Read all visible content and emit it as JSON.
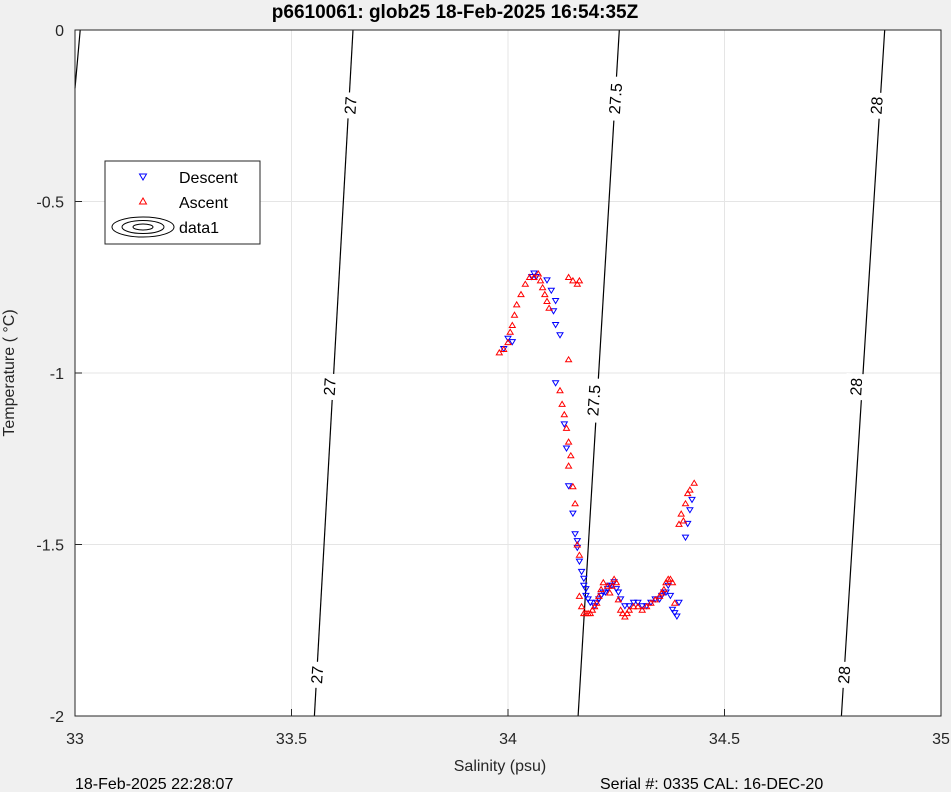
{
  "chart_data": {
    "type": "scatter",
    "title": "p6610061: glob25 18-Feb-2025 16:54:35Z",
    "xlabel": "Salinity (psu)",
    "ylabel": "Temperature (   °C)",
    "xlim": [
      33,
      35
    ],
    "ylim": [
      -2,
      0
    ],
    "xticks": [
      "33",
      "33.5",
      "34",
      "34.5",
      "35"
    ],
    "yticks": [
      "0",
      "-0.5",
      "-1",
      "-1.5",
      "-2"
    ],
    "grid": true,
    "legend_position": "upper-left",
    "legend": [
      "Descent",
      "Ascent",
      "data1"
    ],
    "footer_left": "18-Feb-2025 22:28:07",
    "footer_right": "Serial #: 0335  CAL: 16-DEC-20",
    "contours": [
      {
        "level": "27",
        "points": [
          [
            33.553,
            -2.0
          ],
          [
            33.642,
            0.0
          ]
        ]
      },
      {
        "level": "27.5",
        "points": [
          [
            34.162,
            -2.0
          ],
          [
            34.257,
            0.0
          ]
        ]
      },
      {
        "level": "28",
        "points": [
          [
            34.77,
            -2.0
          ],
          [
            34.87,
            0.0
          ]
        ]
      },
      {
        "level": "",
        "points": [
          [
            33.0,
            -0.17
          ],
          [
            33.012,
            0.0
          ]
        ]
      }
    ],
    "contour_labels": [
      {
        "text": "27",
        "s": 33.635,
        "t": -0.22
      },
      {
        "text": "27.5",
        "s": 34.247,
        "t": -0.2
      },
      {
        "text": "28",
        "s": 34.85,
        "t": -0.22
      },
      {
        "text": "27",
        "s": 33.587,
        "t": -1.04
      },
      {
        "text": "27.5",
        "s": 34.197,
        "t": -1.08
      },
      {
        "text": "28",
        "s": 34.803,
        "t": -1.04
      },
      {
        "text": "27",
        "s": 33.558,
        "t": -1.88
      },
      {
        "text": "28",
        "s": 34.775,
        "t": -1.88
      }
    ],
    "series": [
      {
        "name": "Descent",
        "color": "#0000ff",
        "marker": "triangle-down",
        "points": [
          [
            34.06,
            -0.71
          ],
          [
            34.055,
            -0.72
          ],
          [
            34.065,
            -0.72
          ],
          [
            34.09,
            -0.73
          ],
          [
            34.1,
            -0.76
          ],
          [
            34.11,
            -0.79
          ],
          [
            34.105,
            -0.82
          ],
          [
            34.11,
            -0.86
          ],
          [
            34.12,
            -0.89
          ],
          [
            34.0,
            -0.9
          ],
          [
            33.99,
            -0.93
          ],
          [
            34.01,
            -0.91
          ],
          [
            34.11,
            -1.03
          ],
          [
            34.13,
            -1.15
          ],
          [
            34.135,
            -1.22
          ],
          [
            34.14,
            -1.33
          ],
          [
            34.15,
            -1.41
          ],
          [
            34.155,
            -1.47
          ],
          [
            34.16,
            -1.49
          ],
          [
            34.16,
            -1.51
          ],
          [
            34.165,
            -1.55
          ],
          [
            34.17,
            -1.58
          ],
          [
            34.175,
            -1.6
          ],
          [
            34.175,
            -1.62
          ],
          [
            34.18,
            -1.63
          ],
          [
            34.18,
            -1.65
          ],
          [
            34.185,
            -1.66
          ],
          [
            34.19,
            -1.67
          ],
          [
            34.2,
            -1.68
          ],
          [
            34.205,
            -1.67
          ],
          [
            34.21,
            -1.66
          ],
          [
            34.215,
            -1.65
          ],
          [
            34.22,
            -1.64
          ],
          [
            34.225,
            -1.64
          ],
          [
            34.23,
            -1.63
          ],
          [
            34.235,
            -1.62
          ],
          [
            34.24,
            -1.62
          ],
          [
            34.245,
            -1.61
          ],
          [
            34.25,
            -1.63
          ],
          [
            34.255,
            -1.64
          ],
          [
            34.26,
            -1.66
          ],
          [
            34.27,
            -1.68
          ],
          [
            34.28,
            -1.68
          ],
          [
            34.29,
            -1.67
          ],
          [
            34.3,
            -1.67
          ],
          [
            34.31,
            -1.68
          ],
          [
            34.32,
            -1.68
          ],
          [
            34.33,
            -1.67
          ],
          [
            34.34,
            -1.66
          ],
          [
            34.35,
            -1.66
          ],
          [
            34.355,
            -1.65
          ],
          [
            34.36,
            -1.64
          ],
          [
            34.365,
            -1.64
          ],
          [
            34.37,
            -1.62
          ],
          [
            34.375,
            -1.65
          ],
          [
            34.38,
            -1.69
          ],
          [
            34.385,
            -1.7
          ],
          [
            34.39,
            -1.71
          ],
          [
            34.395,
            -1.67
          ],
          [
            34.41,
            -1.48
          ],
          [
            34.415,
            -1.44
          ],
          [
            34.42,
            -1.4
          ],
          [
            34.425,
            -1.37
          ]
        ]
      },
      {
        "name": "Ascent",
        "color": "#ff0000",
        "marker": "triangle-up",
        "points": [
          [
            33.98,
            -0.94
          ],
          [
            33.99,
            -0.93
          ],
          [
            34.0,
            -0.91
          ],
          [
            34.005,
            -0.88
          ],
          [
            34.01,
            -0.86
          ],
          [
            34.015,
            -0.83
          ],
          [
            34.02,
            -0.8
          ],
          [
            34.03,
            -0.77
          ],
          [
            34.04,
            -0.74
          ],
          [
            34.05,
            -0.72
          ],
          [
            34.06,
            -0.72
          ],
          [
            34.07,
            -0.71
          ],
          [
            34.075,
            -0.73
          ],
          [
            34.08,
            -0.75
          ],
          [
            34.085,
            -0.77
          ],
          [
            34.09,
            -0.79
          ],
          [
            34.095,
            -0.81
          ],
          [
            34.14,
            -0.72
          ],
          [
            34.15,
            -0.73
          ],
          [
            34.16,
            -0.74
          ],
          [
            34.165,
            -0.73
          ],
          [
            34.14,
            -0.96
          ],
          [
            34.12,
            -1.05
          ],
          [
            34.125,
            -1.09
          ],
          [
            34.13,
            -1.12
          ],
          [
            34.135,
            -1.16
          ],
          [
            34.14,
            -1.2
          ],
          [
            34.145,
            -1.24
          ],
          [
            34.14,
            -1.27
          ],
          [
            34.15,
            -1.33
          ],
          [
            34.155,
            -1.38
          ],
          [
            34.16,
            -1.5
          ],
          [
            34.165,
            -1.53
          ],
          [
            34.165,
            -1.65
          ],
          [
            34.17,
            -1.68
          ],
          [
            34.175,
            -1.7
          ],
          [
            34.18,
            -1.7
          ],
          [
            34.185,
            -1.7
          ],
          [
            34.19,
            -1.7
          ],
          [
            34.195,
            -1.69
          ],
          [
            34.2,
            -1.68
          ],
          [
            34.205,
            -1.67
          ],
          [
            34.21,
            -1.65
          ],
          [
            34.215,
            -1.63
          ],
          [
            34.22,
            -1.61
          ],
          [
            34.23,
            -1.62
          ],
          [
            34.235,
            -1.64
          ],
          [
            34.24,
            -1.62
          ],
          [
            34.245,
            -1.6
          ],
          [
            34.25,
            -1.61
          ],
          [
            34.255,
            -1.66
          ],
          [
            34.26,
            -1.69
          ],
          [
            34.265,
            -1.7
          ],
          [
            34.27,
            -1.71
          ],
          [
            34.275,
            -1.7
          ],
          [
            34.28,
            -1.69
          ],
          [
            34.29,
            -1.68
          ],
          [
            34.3,
            -1.68
          ],
          [
            34.31,
            -1.69
          ],
          [
            34.32,
            -1.68
          ],
          [
            34.33,
            -1.67
          ],
          [
            34.34,
            -1.66
          ],
          [
            34.35,
            -1.65
          ],
          [
            34.355,
            -1.64
          ],
          [
            34.36,
            -1.63
          ],
          [
            34.365,
            -1.61
          ],
          [
            34.37,
            -1.6
          ],
          [
            34.375,
            -1.6
          ],
          [
            34.38,
            -1.61
          ],
          [
            34.385,
            -1.67
          ],
          [
            34.395,
            -1.44
          ],
          [
            34.4,
            -1.41
          ],
          [
            34.405,
            -1.43
          ],
          [
            34.41,
            -1.38
          ],
          [
            34.415,
            -1.35
          ],
          [
            34.42,
            -1.34
          ],
          [
            34.43,
            -1.32
          ]
        ]
      }
    ]
  }
}
